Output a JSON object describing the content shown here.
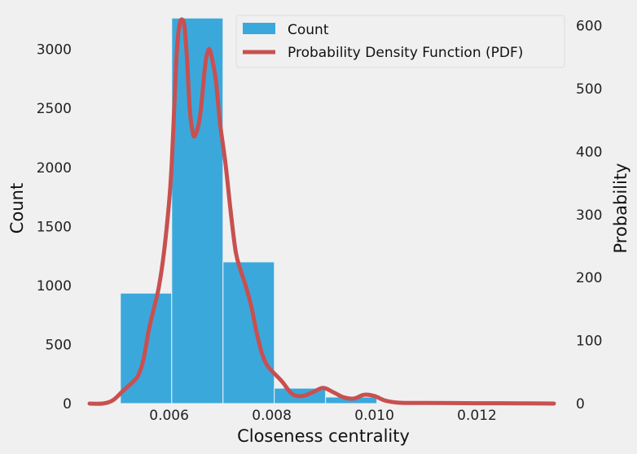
{
  "chart_data": {
    "type": "bar",
    "xlabel": "Closeness centrality",
    "ylabel": "Count",
    "y2label": "Probability",
    "xlim": [
      0.00445,
      0.0135
    ],
    "ylim": [
      0,
      3280
    ],
    "y2lim": [
      0,
      615
    ],
    "x_ticks": [
      0.006,
      0.008,
      0.01,
      0.012
    ],
    "x_tick_labels": [
      "0.006",
      "0.008",
      "0.010",
      "0.012"
    ],
    "y_ticks": [
      0,
      500,
      1000,
      1500,
      2000,
      2500,
      3000
    ],
    "y_tick_labels": [
      "0",
      "500",
      "1000",
      "1500",
      "2000",
      "2500",
      "3000"
    ],
    "y2_ticks": [
      0,
      100,
      200,
      300,
      400,
      500,
      600
    ],
    "y2_tick_labels": [
      "0",
      "100",
      "200",
      "300",
      "400",
      "500",
      "600"
    ],
    "grid": false,
    "legend_position": "top-right",
    "series": [
      {
        "name": "Count",
        "type": "histogram",
        "color": "#3ba8dc",
        "bins": [
          {
            "x0": 0.00505,
            "x1": 0.00605,
            "value": 935
          },
          {
            "x0": 0.00605,
            "x1": 0.00705,
            "value": 3265
          },
          {
            "x0": 0.00705,
            "x1": 0.00805,
            "value": 1200
          },
          {
            "x0": 0.00805,
            "x1": 0.00905,
            "value": 130
          },
          {
            "x0": 0.00905,
            "x1": 0.01005,
            "value": 55
          }
        ]
      },
      {
        "name": "Probability Density Function (PDF)",
        "type": "line",
        "axis": "right",
        "color": "#c85050",
        "x": [
          0.00445,
          0.0047,
          0.0049,
          0.0051,
          0.0053,
          0.0054,
          0.0055,
          0.0056,
          0.0057,
          0.0058,
          0.0059,
          0.006,
          0.00605,
          0.0061,
          0.00615,
          0.0062,
          0.00625,
          0.0063,
          0.00635,
          0.0064,
          0.00645,
          0.0065,
          0.0066,
          0.0067,
          0.00675,
          0.0068,
          0.0069,
          0.00695,
          0.007,
          0.0071,
          0.0072,
          0.0073,
          0.0074,
          0.0075,
          0.0076,
          0.0077,
          0.0078,
          0.0079,
          0.008,
          0.0082,
          0.0084,
          0.0086,
          0.0088,
          0.009,
          0.0092,
          0.0094,
          0.0096,
          0.0098,
          0.01,
          0.0102,
          0.0104,
          0.0106,
          0.011,
          0.012,
          0.0125,
          0.0135
        ],
        "values": [
          0,
          0,
          5,
          20,
          35,
          45,
          70,
          115,
          150,
          185,
          240,
          320,
          380,
          470,
          560,
          600,
          610,
          598,
          545,
          470,
          435,
          425,
          455,
          535,
          558,
          560,
          520,
          480,
          440,
          380,
          305,
          240,
          210,
          185,
          155,
          115,
          82,
          62,
          52,
          35,
          15,
          12,
          18,
          25,
          18,
          10,
          8,
          14,
          12,
          5,
          2,
          1,
          1,
          0.5,
          0.5,
          0
        ]
      }
    ]
  }
}
